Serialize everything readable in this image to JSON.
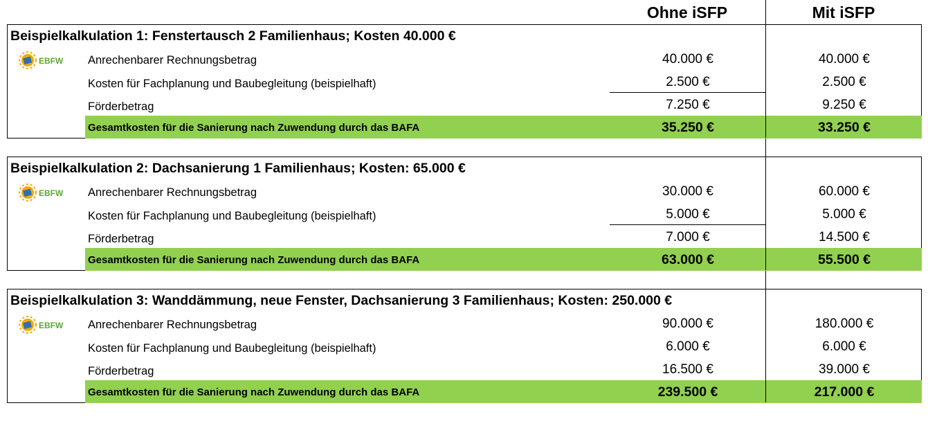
{
  "headers": {
    "col1": "Ohne iSFP",
    "col2": "Mit iSFP"
  },
  "logo_text": "EBFW",
  "colors": {
    "total_row": "#92d050",
    "logo_text": "#5aa832",
    "logo_sun": "#f4a800",
    "logo_panel": "#2f6fb5"
  },
  "blocks": [
    {
      "title": "Beispielkalkulation 1: Fenstertausch 2 Familienhaus; Kosten 40.000 €",
      "rows": [
        {
          "label": "Anrechenbarer Rechnungsbetrag",
          "ohne": "40.000 €",
          "mit": "40.000 €"
        },
        {
          "label": "Kosten für Fachplanung und Baubegleitung (beispielhaft)",
          "ohne": "2.500 €",
          "mit": "2.500 €"
        },
        {
          "label": "Förderbetrag",
          "ohne": "7.250 €",
          "mit": "9.250 €"
        }
      ],
      "total": {
        "label": "Gesamtkosten für die Sanierung nach Zuwendung durch das BAFA",
        "ohne": "35.250 €",
        "mit": "33.250 €"
      }
    },
    {
      "title": "Beispielkalkulation 2: Dachsanierung 1 Familienhaus; Kosten: 65.000 €",
      "rows": [
        {
          "label": "Anrechenbarer Rechnungsbetrag",
          "ohne": "30.000 €",
          "mit": "60.000 €"
        },
        {
          "label": "Kosten für Fachplanung und Baubegleitung (beispielhaft)",
          "ohne": "5.000 €",
          "mit": "5.000 €"
        },
        {
          "label": "Förderbetrag",
          "ohne": "7.000 €",
          "mit": "14.500 €"
        }
      ],
      "total": {
        "label": "Gesamtkosten für die Sanierung nach Zuwendung durch das BAFA",
        "ohne": "63.000 €",
        "mit": "55.500 €"
      }
    },
    {
      "title": "Beispielkalkulation 3: Wanddämmung, neue Fenster, Dachsanierung 3 Familienhaus; Kosten: 250.000 €",
      "rows": [
        {
          "label": "Anrechenbarer Rechnungsbetrag",
          "ohne": "90.000 €",
          "mit": "180.000 €"
        },
        {
          "label": "Kosten für Fachplanung und Baubegleitung (beispielhaft)",
          "ohne": "6.000 €",
          "mit": "6.000 €"
        },
        {
          "label": "Förderbetrag",
          "ohne": "16.500 €",
          "mit": "39.000 €"
        }
      ],
      "total": {
        "label": "Gesamtkosten für die Sanierung nach Zuwendung durch das BAFA",
        "ohne": "239.500 €",
        "mit": "217.000 €"
      }
    }
  ]
}
